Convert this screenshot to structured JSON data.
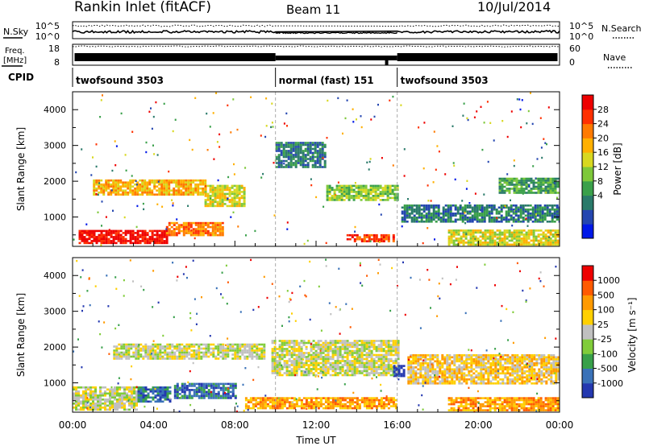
{
  "header": {
    "title": "Rankin Inlet (fitACF)",
    "beam": "Beam 11",
    "date": "10/Jul/2014"
  },
  "noise_panel": {
    "left_label": "N.Sky",
    "right_label": "N.Search",
    "left_ticks": [
      "10^5",
      "10^0"
    ],
    "right_ticks": [
      "10^5",
      "10^0"
    ]
  },
  "freq_panel": {
    "left_label_line1": "Freq.",
    "left_label_line2": "[MHz]",
    "right_label": "Nave",
    "left_ticks": [
      "18",
      "8"
    ],
    "right_ticks": [
      "60",
      "0"
    ]
  },
  "cpid": {
    "label": "CPID",
    "segments": [
      {
        "label": "twofsound 3503",
        "start_h": 0,
        "end_h": 10
      },
      {
        "label": "normal (fast) 151",
        "start_h": 10,
        "end_h": 16
      },
      {
        "label": "twofsound 3503",
        "start_h": 16,
        "end_h": 24
      }
    ]
  },
  "chart_data": [
    {
      "type": "heatmap",
      "variable": "Power",
      "ylabel": "Slant Range [km]",
      "ylim": [
        180,
        4500
      ],
      "yticks": [
        1000,
        2000,
        3000,
        4000
      ],
      "xlim": [
        0,
        24
      ],
      "colorbar": {
        "label": "Power [dB]",
        "ticks": [
          "28",
          "24",
          "20",
          "16",
          "12",
          "8",
          "4"
        ],
        "colors": [
          "#0018e8",
          "#2446b0",
          "#2a7a6a",
          "#3aa04a",
          "#7ec83a",
          "#d8d820",
          "#ffb000",
          "#ff7a00",
          "#ff3000",
          "#ee0000"
        ]
      },
      "features": [
        {
          "hours": [
            0.3,
            4.6
          ],
          "range_km": [
            250,
            640
          ],
          "level": 9
        },
        {
          "hours": [
            4.6,
            7.4
          ],
          "range_km": [
            480,
            860
          ],
          "level": 7
        },
        {
          "hours": [
            1.0,
            6.5
          ],
          "range_km": [
            1650,
            2050
          ],
          "level": 6
        },
        {
          "hours": [
            6.5,
            8.5
          ],
          "range_km": [
            1300,
            1900
          ],
          "level": 5
        },
        {
          "hours": [
            10.0,
            12.5
          ],
          "range_km": [
            2400,
            3100
          ],
          "level": 2
        },
        {
          "hours": [
            12.5,
            16.0
          ],
          "range_km": [
            1450,
            1900
          ],
          "level": 4
        },
        {
          "hours": [
            13.5,
            15.8
          ],
          "range_km": [
            300,
            520
          ],
          "level": 8
        },
        {
          "hours": [
            16.2,
            24.0
          ],
          "range_km": [
            850,
            1350
          ],
          "level": 2
        },
        {
          "hours": [
            18.5,
            24.0
          ],
          "range_km": [
            250,
            650
          ],
          "level": 5
        },
        {
          "hours": [
            21.0,
            24.0
          ],
          "range_km": [
            1700,
            2100
          ],
          "level": 3
        }
      ]
    },
    {
      "type": "heatmap",
      "variable": "Velocity",
      "ylabel": "Slant Range [km]",
      "ylim": [
        180,
        4500
      ],
      "yticks": [
        1000,
        2000,
        3000,
        4000
      ],
      "xlim": [
        0,
        24
      ],
      "xlabel": "Time UT",
      "xticks": [
        "00:00",
        "04:00",
        "08:00",
        "12:00",
        "16:00",
        "20:00",
        "00:00"
      ],
      "colorbar": {
        "label": "Velocity [m s⁻¹]",
        "ticks": [
          "1000",
          "500",
          "100",
          "25",
          "-25",
          "-100",
          "-500",
          "-1000"
        ],
        "colors": [
          "#2438b0",
          "#3a72b8",
          "#38a04a",
          "#80cc3a",
          "#c0c0c0",
          "#ffd000",
          "#ff9a00",
          "#ff5a00",
          "#ee0000"
        ]
      },
      "features": [
        {
          "hours": [
            0.0,
            3.2
          ],
          "range_km": [
            260,
            900
          ],
          "level": 4
        },
        {
          "hours": [
            3.2,
            4.8
          ],
          "range_km": [
            500,
            900
          ],
          "level": 1
        },
        {
          "hours": [
            5.0,
            8.0
          ],
          "range_km": [
            550,
            1000
          ],
          "level": 1
        },
        {
          "hours": [
            2.0,
            9.5
          ],
          "range_km": [
            1650,
            2100
          ],
          "level": 4
        },
        {
          "hours": [
            9.8,
            16.0
          ],
          "range_km": [
            1200,
            2200
          ],
          "level": 4
        },
        {
          "hours": [
            8.5,
            16.0
          ],
          "range_km": [
            300,
            600
          ],
          "level": 6
        },
        {
          "hours": [
            15.8,
            16.3
          ],
          "range_km": [
            1200,
            1500
          ],
          "level": 0
        },
        {
          "hours": [
            16.5,
            24.0
          ],
          "range_km": [
            1000,
            1800
          ],
          "level": 5
        },
        {
          "hours": [
            18.5,
            24.0
          ],
          "range_km": [
            250,
            600
          ],
          "level": 6
        }
      ]
    }
  ]
}
